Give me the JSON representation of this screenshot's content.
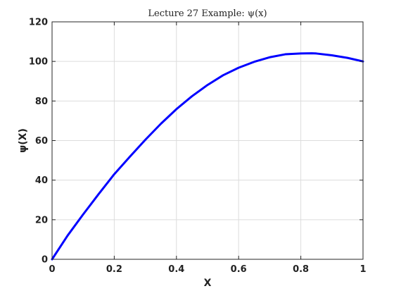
{
  "chart_data": {
    "type": "line",
    "title": "Lecture 27 Example: ψ(x)",
    "xlabel": "X",
    "ylabel": "ψ(X)",
    "xlim": [
      0,
      1
    ],
    "ylim": [
      0,
      120
    ],
    "x_ticks": [
      "0",
      "0.2",
      "0.4",
      "0.6",
      "0.8",
      "1"
    ],
    "y_ticks": [
      "0",
      "20",
      "40",
      "60",
      "80",
      "100",
      "120"
    ],
    "grid": true,
    "series": [
      {
        "color": "#0000ff",
        "x": [
          0,
          0.05,
          0.1,
          0.15,
          0.2,
          0.25,
          0.3,
          0.35,
          0.4,
          0.45,
          0.5,
          0.55,
          0.6,
          0.65,
          0.7,
          0.75,
          0.8,
          0.835,
          0.85,
          0.9,
          0.95,
          1.0
        ],
        "y": [
          0,
          12,
          22.7,
          33,
          43,
          51.8,
          60.4,
          68.5,
          75.9,
          82.4,
          88.1,
          93,
          96.8,
          99.8,
          102.1,
          103.6,
          104,
          104.1,
          104,
          103.1,
          101.8,
          100
        ]
      }
    ]
  }
}
